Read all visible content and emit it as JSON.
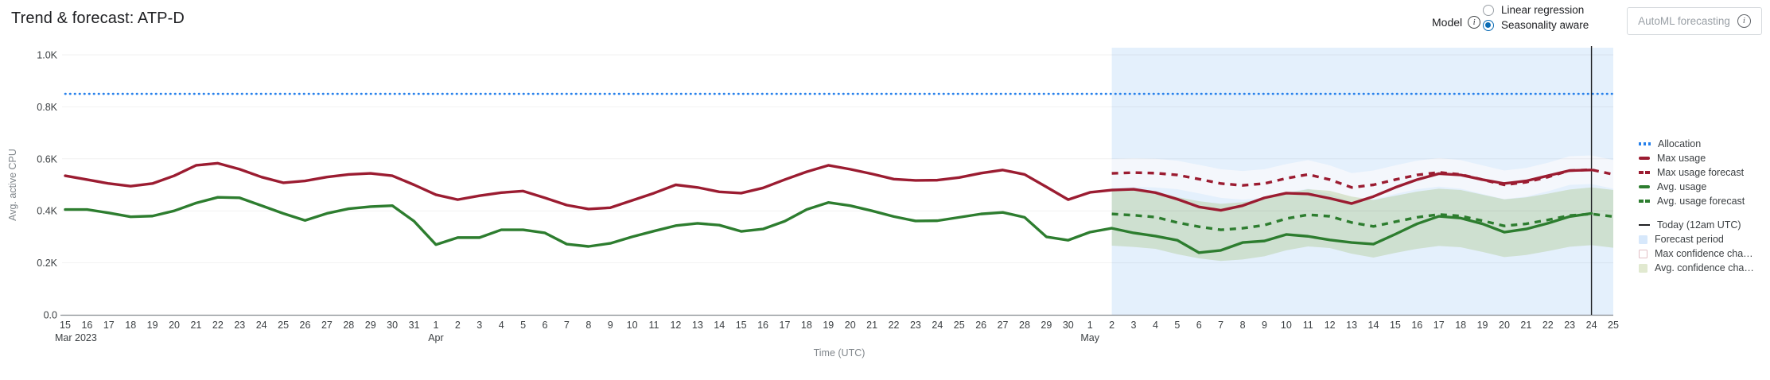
{
  "header": {
    "title": "Trend & forecast: ATP-D"
  },
  "controls": {
    "model_label": "Model",
    "info_glyph": "i",
    "radios": [
      {
        "label": "Linear regression",
        "selected": false
      },
      {
        "label": "Seasonality aware",
        "selected": true
      }
    ],
    "automl_button_label": "AutoML forecasting"
  },
  "legend": {
    "groups": [
      [
        {
          "name": "allocation",
          "swatch": "dotted",
          "color": "#2680eb",
          "label": "Allocation"
        },
        {
          "name": "max-usage",
          "swatch": "solid",
          "color": "#9b1c31",
          "label": "Max usage"
        },
        {
          "name": "max-usage-forecast",
          "swatch": "dashed",
          "color": "#9b1c31",
          "label": "Max usage forecast"
        },
        {
          "name": "avg-usage",
          "swatch": "solid",
          "color": "#2d7d2f",
          "label": "Avg. usage"
        },
        {
          "name": "avg-usage-forecast",
          "swatch": "dashed",
          "color": "#2d7d2f",
          "label": "Avg. usage forecast"
        }
      ],
      [
        {
          "name": "today-line",
          "swatch": "line",
          "color": "#202124",
          "label": "Today (12am UTC)"
        },
        {
          "name": "forecast-period",
          "swatch": "box",
          "color": "#d7e8fb",
          "label": "Forecast period"
        },
        {
          "name": "max-confidence",
          "swatch": "box-border",
          "color": "#ffffff",
          "label": "Max confidence cha…"
        },
        {
          "name": "avg-confidence",
          "swatch": "box",
          "color": "#e1e9d0",
          "label": "Avg. confidence cha…"
        }
      ]
    ]
  },
  "chart_data": {
    "type": "line",
    "title": "Trend & forecast: ATP-D",
    "xlabel": "Time (UTC)",
    "ylabel": "Avg. active CPU",
    "ylim": [
      0,
      1000
    ],
    "y_ticks": [
      {
        "v": 1000,
        "label": "1.0K"
      },
      {
        "v": 800,
        "label": "0.8K"
      },
      {
        "v": 600,
        "label": "0.6K"
      },
      {
        "v": 400,
        "label": "0.4K"
      },
      {
        "v": 200,
        "label": "0.2K"
      },
      {
        "v": 0,
        "label": "0.0"
      }
    ],
    "x_ticks": [
      "15",
      "16",
      "17",
      "18",
      "19",
      "20",
      "21",
      "22",
      "23",
      "24",
      "25",
      "26",
      "27",
      "28",
      "29",
      "30",
      "31",
      "1",
      "2",
      "3",
      "4",
      "5",
      "6",
      "7",
      "8",
      "9",
      "10",
      "11",
      "12",
      "13",
      "14",
      "15",
      "16",
      "17",
      "18",
      "19",
      "20",
      "21",
      "22",
      "23",
      "24",
      "25",
      "26",
      "27",
      "28",
      "29",
      "30",
      "1",
      "2",
      "3",
      "4",
      "5",
      "6",
      "7",
      "8",
      "9",
      "10",
      "11",
      "12",
      "13",
      "14",
      "15",
      "16",
      "17",
      "18",
      "19",
      "20",
      "21",
      "22",
      "23",
      "24",
      "25"
    ],
    "month_labels": {
      "0": "Mar 2023",
      "17": "Apr",
      "47": "May"
    },
    "allocation": 850,
    "forecast_start_day": 48,
    "today_day": 70,
    "colors": {
      "allocation": "#2680eb",
      "max": "#9b1c31",
      "avg": "#2d7d2f",
      "forecast_bg": "#e4f0fc",
      "today": "#1f2124",
      "grid": "rgba(0,0,0,0.055)",
      "axis_line": "#8a8f94"
    },
    "series": [
      {
        "name": "Max usage",
        "color": "#9b1c31",
        "dash": "solid",
        "start_day": 0,
        "values": [
          535,
          520,
          505,
          495,
          505,
          535,
          575,
          583,
          560,
          530,
          508,
          515,
          530,
          540,
          544,
          535,
          500,
          462,
          443,
          458,
          470,
          476,
          450,
          422,
          407,
          412,
          440,
          468,
          500,
          490,
          473,
          468,
          488,
          520,
          550,
          575,
          560,
          542,
          522,
          517,
          518,
          528,
          545,
          557,
          540,
          492,
          443,
          471,
          480,
          483,
          470,
          445,
          415,
          402,
          420,
          450,
          468,
          465,
          448,
          428,
          455,
          490,
          520,
          543,
          538,
          520,
          505,
          515,
          535,
          555,
          557
        ]
      },
      {
        "name": "Max usage forecast",
        "color": "#9b1c31",
        "dash": "dashed",
        "start_day": 48,
        "values": [
          544,
          547,
          545,
          538,
          522,
          505,
          498,
          505,
          525,
          540,
          520,
          490,
          500,
          520,
          538,
          548,
          540,
          520,
          500,
          510,
          530,
          555,
          558,
          540
        ]
      },
      {
        "name": "Avg. usage",
        "color": "#2d7d2f",
        "dash": "solid",
        "start_day": 0,
        "values": [
          405,
          405,
          392,
          377,
          380,
          400,
          430,
          452,
          450,
          420,
          390,
          363,
          390,
          408,
          416,
          420,
          360,
          270,
          297,
          297,
          327,
          327,
          315,
          272,
          263,
          275,
          300,
          322,
          343,
          352,
          345,
          321,
          330,
          360,
          405,
          432,
          420,
          400,
          378,
          361,
          362,
          375,
          388,
          394,
          375,
          300,
          287,
          318,
          333,
          315,
          303,
          287,
          239,
          248,
          278,
          284,
          309,
          302,
          288,
          278,
          272,
          310,
          350,
          379,
          372,
          350,
          318,
          330,
          352,
          378,
          390
        ]
      },
      {
        "name": "Avg. usage forecast",
        "color": "#2d7d2f",
        "dash": "dashed",
        "start_day": 48,
        "values": [
          388,
          383,
          376,
          355,
          339,
          327,
          333,
          345,
          370,
          385,
          379,
          355,
          340,
          358,
          375,
          386,
          380,
          362,
          342,
          350,
          365,
          382,
          388,
          378
        ]
      }
    ],
    "bands": [
      {
        "name": "Max confidence",
        "start_day": 48,
        "fill": "rgba(255,251,251,0.6)",
        "upper": [
          599,
          602,
          600,
          593,
          577,
          560,
          553,
          560,
          580,
          595,
          575,
          545,
          555,
          575,
          593,
          603,
          595,
          575,
          555,
          565,
          585,
          610,
          613,
          595
        ],
        "lower": [
          489,
          492,
          490,
          483,
          467,
          450,
          443,
          450,
          470,
          485,
          465,
          435,
          445,
          465,
          483,
          493,
          485,
          465,
          445,
          455,
          475,
          500,
          503,
          485
        ]
      },
      {
        "name": "Avg confidence",
        "start_day": 48,
        "fill": "rgba(162,190,114,0.32)",
        "upper": [
          486,
          481,
          474,
          453,
          437,
          427,
          433,
          445,
          468,
          483,
          477,
          455,
          442,
          458,
          474,
          485,
          480,
          462,
          444,
          452,
          466,
          482,
          490,
          480
        ],
        "lower": [
          266,
          261,
          254,
          233,
          217,
          207,
          213,
          225,
          248,
          263,
          257,
          235,
          220,
          238,
          254,
          265,
          260,
          242,
          222,
          230,
          245,
          262,
          268,
          258
        ]
      }
    ]
  }
}
